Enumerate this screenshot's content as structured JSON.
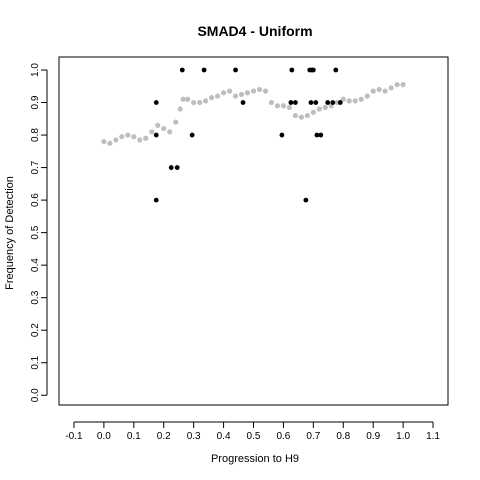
{
  "chart_data": {
    "type": "scatter",
    "title": "SMAD4 - Uniform",
    "xlabel": "Progression to H9",
    "ylabel": "Frequency of Detection",
    "xlim": [
      -0.15,
      1.15
    ],
    "ylim": [
      -0.03,
      1.04
    ],
    "x_ticks": [
      -0.1,
      0.0,
      0.1,
      0.2,
      0.3,
      0.4,
      0.5,
      0.6,
      0.7,
      0.8,
      0.9,
      1.0,
      1.1
    ],
    "x_tick_labels": [
      "-0.1",
      "0.0",
      "0.1",
      "0.2",
      "0.3",
      "0.4",
      "0.5",
      "0.6",
      "0.7",
      "0.8",
      "0.9",
      "1.0",
      "1.1"
    ],
    "y_ticks": [
      0.0,
      0.1,
      0.2,
      0.3,
      0.4,
      0.5,
      0.6,
      0.7,
      0.8,
      0.9,
      1.0
    ],
    "y_tick_labels": [
      "0.0",
      "0.1",
      "0.2",
      "0.3",
      "0.4",
      "0.5",
      "0.6",
      "0.7",
      "0.8",
      "0.9",
      "1.0"
    ],
    "grid": false,
    "colors": {
      "observed": "#000000",
      "smoothed": "#bebebe"
    },
    "series": [
      {
        "color": "#000000",
        "marker": "dot",
        "points": [
          [
            0.175,
            0.6
          ],
          [
            0.175,
            0.8
          ],
          [
            0.175,
            0.9
          ],
          [
            0.225,
            0.7
          ],
          [
            0.245,
            0.7
          ],
          [
            0.262,
            1.0
          ],
          [
            0.295,
            0.8
          ],
          [
            0.335,
            1.0
          ],
          [
            0.44,
            1.0
          ],
          [
            0.465,
            0.9
          ],
          [
            0.595,
            0.8
          ],
          [
            0.625,
            0.9
          ],
          [
            0.628,
            1.0
          ],
          [
            0.64,
            0.9
          ],
          [
            0.675,
            0.6
          ],
          [
            0.688,
            1.0
          ],
          [
            0.692,
            0.9
          ],
          [
            0.695,
            1.0
          ],
          [
            0.7,
            1.0
          ],
          [
            0.708,
            0.9
          ],
          [
            0.712,
            0.8
          ],
          [
            0.725,
            0.8
          ],
          [
            0.748,
            0.9
          ],
          [
            0.765,
            0.9
          ],
          [
            0.775,
            1.0
          ],
          [
            0.79,
            0.9
          ]
        ]
      },
      {
        "color": "#bebebe",
        "marker": "trace",
        "points": [
          [
            0.0,
            0.78
          ],
          [
            0.02,
            0.775
          ],
          [
            0.04,
            0.785
          ],
          [
            0.06,
            0.795
          ],
          [
            0.08,
            0.8
          ],
          [
            0.1,
            0.795
          ],
          [
            0.12,
            0.785
          ],
          [
            0.14,
            0.79
          ],
          [
            0.16,
            0.81
          ],
          [
            0.18,
            0.83
          ],
          [
            0.2,
            0.82
          ],
          [
            0.22,
            0.81
          ],
          [
            0.24,
            0.84
          ],
          [
            0.255,
            0.88
          ],
          [
            0.265,
            0.91
          ],
          [
            0.28,
            0.91
          ],
          [
            0.3,
            0.9
          ],
          [
            0.32,
            0.9
          ],
          [
            0.34,
            0.905
          ],
          [
            0.36,
            0.915
          ],
          [
            0.38,
            0.92
          ],
          [
            0.4,
            0.93
          ],
          [
            0.42,
            0.935
          ],
          [
            0.44,
            0.92
          ],
          [
            0.46,
            0.925
          ],
          [
            0.48,
            0.93
          ],
          [
            0.5,
            0.935
          ],
          [
            0.52,
            0.94
          ],
          [
            0.54,
            0.935
          ],
          [
            0.56,
            0.9
          ],
          [
            0.58,
            0.89
          ],
          [
            0.6,
            0.89
          ],
          [
            0.62,
            0.885
          ],
          [
            0.64,
            0.86
          ],
          [
            0.66,
            0.855
          ],
          [
            0.68,
            0.86
          ],
          [
            0.7,
            0.87
          ],
          [
            0.72,
            0.88
          ],
          [
            0.74,
            0.885
          ],
          [
            0.76,
            0.89
          ],
          [
            0.78,
            0.9
          ],
          [
            0.8,
            0.91
          ],
          [
            0.82,
            0.905
          ],
          [
            0.84,
            0.905
          ],
          [
            0.86,
            0.91
          ],
          [
            0.88,
            0.92
          ],
          [
            0.9,
            0.935
          ],
          [
            0.92,
            0.94
          ],
          [
            0.94,
            0.935
          ],
          [
            0.96,
            0.945
          ],
          [
            0.98,
            0.955
          ],
          [
            1.0,
            0.955
          ]
        ]
      }
    ]
  }
}
